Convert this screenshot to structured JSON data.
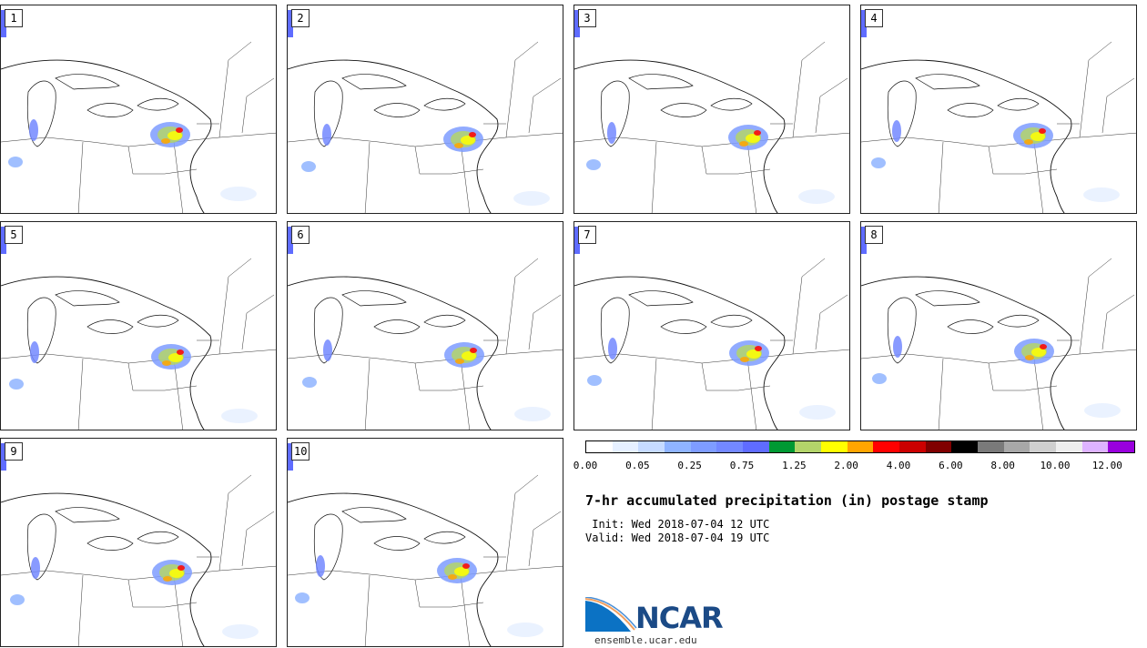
{
  "panels": [
    {
      "label": "1"
    },
    {
      "label": "2"
    },
    {
      "label": "3"
    },
    {
      "label": "4"
    },
    {
      "label": "5"
    },
    {
      "label": "6"
    },
    {
      "label": "7"
    },
    {
      "label": "8"
    },
    {
      "label": "9"
    },
    {
      "label": "10"
    }
  ],
  "colorbar": {
    "colors": [
      "#ffffff",
      "#e6f0ff",
      "#c6dbff",
      "#8fb4ff",
      "#7e9cff",
      "#7388ff",
      "#5f6cff",
      "#009933",
      "#b3d46a",
      "#ffff00",
      "#ffa500",
      "#ff0000",
      "#cc0000",
      "#800000",
      "#000000",
      "#7a7a7a",
      "#a8a8a8",
      "#cfcfcf",
      "#eeeeee",
      "#deb3ff",
      "#9900dd"
    ],
    "ticks": [
      "0.00",
      "0.05",
      "0.25",
      "0.75",
      "1.25",
      "2.00",
      "4.00",
      "6.00",
      "8.00",
      "10.00",
      "12.00"
    ]
  },
  "title": "7-hr accumulated precipitation (in) postage stamp",
  "init": " Init: Wed 2018-07-04 12 UTC",
  "valid": "Valid: Wed 2018-07-04 19 UTC",
  "logo": {
    "text": "NCAR"
  },
  "website": "ensemble.ucar.edu"
}
